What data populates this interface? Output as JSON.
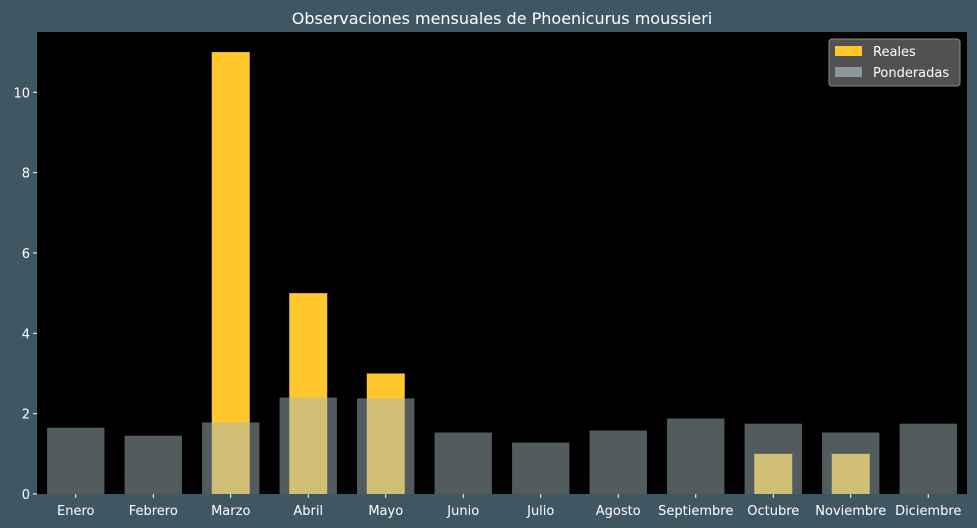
{
  "chart_data": {
    "type": "bar",
    "title": "Observaciones mensuales de Phoenicurus moussieri",
    "xlabel": "",
    "ylabel": "",
    "categories": [
      "Enero",
      "Febrero",
      "Marzo",
      "Abril",
      "Mayo",
      "Junio",
      "Julio",
      "Agosto",
      "Septiembre",
      "Octubre",
      "Noviembre",
      "Diciembre"
    ],
    "ylim": [
      0,
      11.5
    ],
    "yticks": [
      "0",
      "2",
      "4",
      "6",
      "8",
      "10"
    ],
    "grid": false,
    "legend_position": "top-right",
    "series": [
      {
        "name": "Reales",
        "values": [
          0,
          0,
          11,
          5,
          3,
          0,
          0,
          0,
          0,
          1,
          1,
          0
        ],
        "color": "#ffc72c"
      },
      {
        "name": "Ponderadas",
        "values": [
          1.65,
          1.45,
          1.78,
          2.4,
          2.38,
          1.53,
          1.28,
          1.58,
          1.88,
          1.75,
          1.53,
          1.75
        ],
        "color": "#a3b7bd"
      }
    ],
    "colors": {
      "figure_background": "#3f5663",
      "plot_background": "#000000",
      "text": "#ffffff",
      "legend_background": "#555555"
    }
  }
}
